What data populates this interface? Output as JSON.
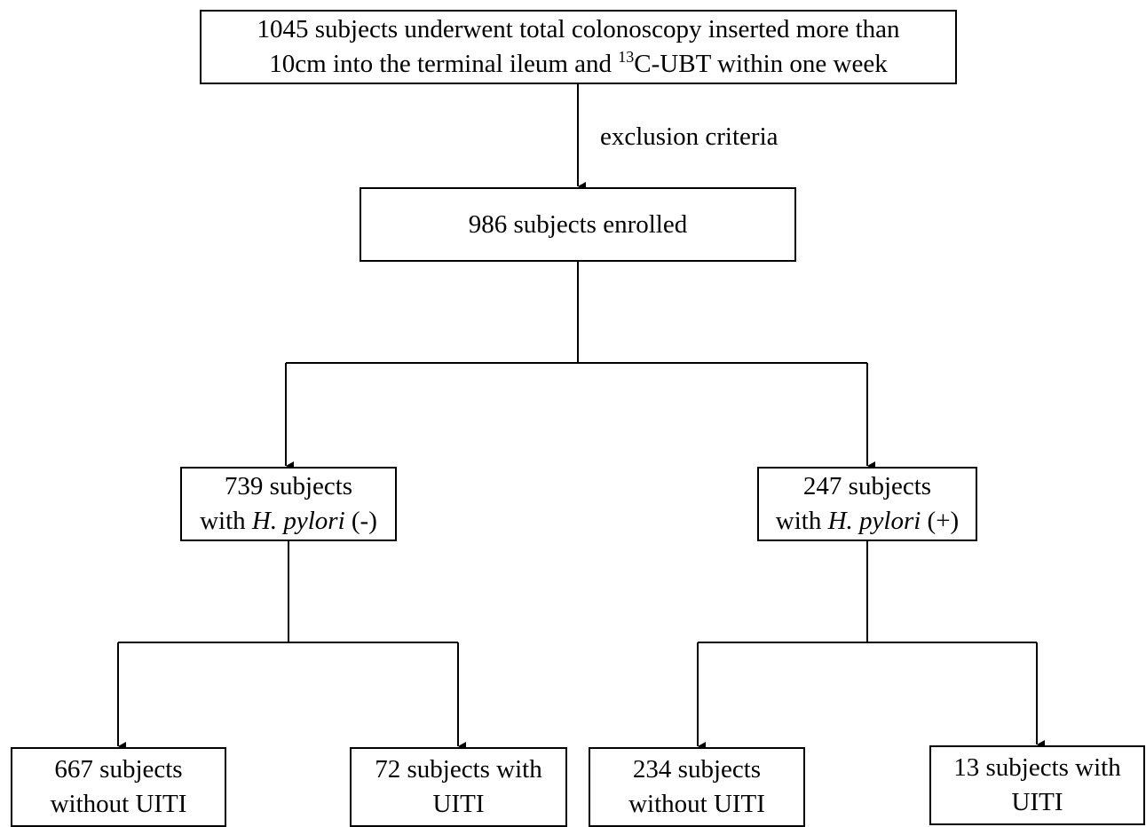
{
  "nodes": {
    "start": {
      "line1": "1045 subjects underwent total colonoscopy inserted more than",
      "line2_before": "10cm into the terminal ileum and ",
      "line2_sup": "13",
      "line2_after": "C-UBT within one week"
    },
    "exclusion_label": "exclusion criteria",
    "enrolled": "986 subjects enrolled",
    "hp_negative": {
      "line1": "739 subjects",
      "line2_before": "with ",
      "line2_italic": "H. pylori",
      "line2_after": " (-)"
    },
    "hp_positive": {
      "line1": "247 subjects",
      "line2_before": "with ",
      "line2_italic": "H. pylori",
      "line2_after": " (+)"
    },
    "neg_without_uiti": {
      "line1": "667 subjects",
      "line2": "without UITI"
    },
    "neg_with_uiti": {
      "line1": "72 subjects with",
      "line2": "UITI"
    },
    "pos_without_uiti": {
      "line1": "234 subjects",
      "line2": "without UITI"
    },
    "pos_with_uiti": {
      "line1": "13 subjects with",
      "line2": "UITI"
    }
  },
  "colors": {
    "line": "#000000",
    "box_border": "#000000",
    "background": "#ffffff"
  }
}
